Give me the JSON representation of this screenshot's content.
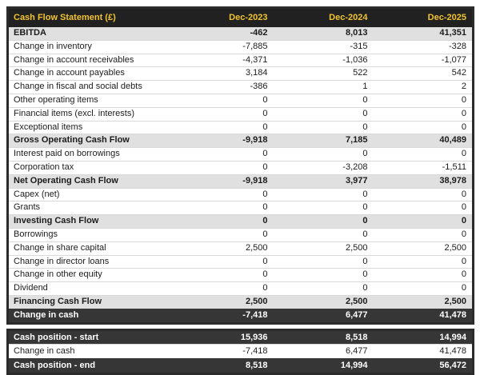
{
  "chart_data": {
    "type": "table",
    "title": "Cash Flow Statement (£)",
    "columns": [
      "Dec-2023",
      "Dec-2024",
      "Dec-2025"
    ],
    "rows": [
      {
        "label": "EBITDA",
        "values": [
          "-462",
          "8,013",
          "41,351"
        ],
        "style": "subtotal"
      },
      {
        "label": "Change in inventory",
        "values": [
          "-7,885",
          "-315",
          "-328"
        ],
        "style": "normal"
      },
      {
        "label": "Change in account receivables",
        "values": [
          "-4,371",
          "-1,036",
          "-1,077"
        ],
        "style": "normal"
      },
      {
        "label": "Change in account payables",
        "values": [
          "3,184",
          "522",
          "542"
        ],
        "style": "normal"
      },
      {
        "label": "Change in fiscal and social debts",
        "values": [
          "-386",
          "1",
          "2"
        ],
        "style": "normal"
      },
      {
        "label": "Other operating items",
        "values": [
          "0",
          "0",
          "0"
        ],
        "style": "normal"
      },
      {
        "label": "Financial items (excl. interests)",
        "values": [
          "0",
          "0",
          "0"
        ],
        "style": "normal"
      },
      {
        "label": "Exceptional items",
        "values": [
          "0",
          "0",
          "0"
        ],
        "style": "normal"
      },
      {
        "label": "Gross Operating Cash Flow",
        "values": [
          "-9,918",
          "7,185",
          "40,489"
        ],
        "style": "subtotal"
      },
      {
        "label": "Interest paid on borrowings",
        "values": [
          "0",
          "0",
          "0"
        ],
        "style": "normal"
      },
      {
        "label": "Corporation tax",
        "values": [
          "0",
          "-3,208",
          "-1,511"
        ],
        "style": "normal"
      },
      {
        "label": "Net Operating Cash Flow",
        "values": [
          "-9,918",
          "3,977",
          "38,978"
        ],
        "style": "subtotal"
      },
      {
        "label": "Capex (net)",
        "values": [
          "0",
          "0",
          "0"
        ],
        "style": "normal"
      },
      {
        "label": "Grants",
        "values": [
          "0",
          "0",
          "0"
        ],
        "style": "normal"
      },
      {
        "label": "Investing Cash Flow",
        "values": [
          "0",
          "0",
          "0"
        ],
        "style": "subtotal"
      },
      {
        "label": "Borrowings",
        "values": [
          "0",
          "0",
          "0"
        ],
        "style": "normal"
      },
      {
        "label": "Change in share capital",
        "values": [
          "2,500",
          "2,500",
          "2,500"
        ],
        "style": "normal"
      },
      {
        "label": "Change in director loans",
        "values": [
          "0",
          "0",
          "0"
        ],
        "style": "normal"
      },
      {
        "label": "Change in other equity",
        "values": [
          "0",
          "0",
          "0"
        ],
        "style": "normal"
      },
      {
        "label": "Dividend",
        "values": [
          "0",
          "0",
          "0"
        ],
        "style": "normal"
      },
      {
        "label": "Financing Cash Flow",
        "values": [
          "2,500",
          "2,500",
          "2,500"
        ],
        "style": "subtotal"
      },
      {
        "label": "Change in cash",
        "values": [
          "-7,418",
          "6,477",
          "41,478"
        ],
        "style": "dark"
      }
    ],
    "footer_rows": [
      {
        "label": "Cash position - start",
        "values": [
          "15,936",
          "8,518",
          "14,994"
        ],
        "style": "dark"
      },
      {
        "label": "Change in cash",
        "values": [
          "-7,418",
          "6,477",
          "41,478"
        ],
        "style": "normal"
      },
      {
        "label": "Cash position - end",
        "values": [
          "8,518",
          "14,994",
          "56,472"
        ],
        "style": "dark"
      }
    ],
    "layout": {
      "grid": "off",
      "value_alignment": "right",
      "currency_symbol": "£"
    }
  },
  "colors": {
    "header_bg": "#212121",
    "header_text": "#f1c232",
    "subtotal_row_bg": "#e0e0e0",
    "dark_row_bg": "#363636",
    "dark_row_text": "#ffffff",
    "table_border": "#2b2b2b",
    "row_divider": "#d9d9d9",
    "body_text": "#1c1c1c",
    "page_bg": "#ffffff"
  }
}
